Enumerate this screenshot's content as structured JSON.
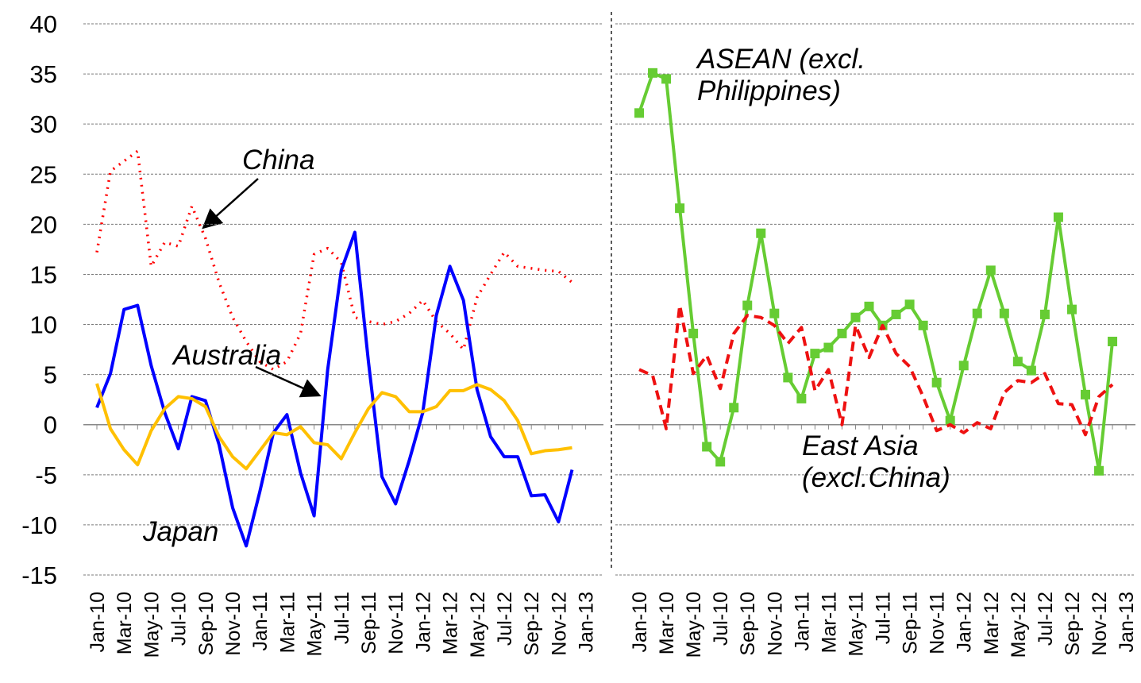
{
  "chart_data": [
    {
      "type": "line",
      "categories": [
        "Jan-10",
        null,
        "Mar-10",
        null,
        "May-10",
        null,
        "Jul-10",
        null,
        "Sep-10",
        null,
        "Nov-10",
        null,
        "Jan-11",
        null,
        "Mar-11",
        null,
        "May-11",
        null,
        "Jul-11",
        null,
        "Sep-11",
        null,
        "Nov-11",
        null,
        "Jan-12",
        null,
        "Mar-12",
        null,
        "May-12",
        null,
        "Jul-12",
        null,
        "Sep-12",
        null,
        "Nov-12",
        null,
        "Jan-13"
      ],
      "ylim": [
        -15,
        40
      ],
      "yticks": [
        -15,
        -10,
        -5,
        0,
        5,
        10,
        15,
        20,
        25,
        30,
        35,
        40
      ],
      "grid": true,
      "series": [
        {
          "name": "China",
          "color": "#ff0000",
          "style": "dotted",
          "values": [
            17.2,
            25.3,
            26.3,
            27.3,
            15.8,
            18.2,
            17.8,
            21.8,
            18.6,
            14.2,
            10.7,
            8.3,
            6.3,
            5.5,
            6.3,
            9.1,
            17.0,
            17.6,
            16.2,
            10.7,
            10.3,
            10.0,
            10.3,
            11.1,
            12.4,
            10.3,
            9.1,
            7.5,
            12.7,
            15.0,
            17.2,
            15.8,
            15.6,
            15.4,
            15.3,
            14.2,
            null
          ]
        },
        {
          "name": "Japan",
          "color": "#0000ff",
          "style": "solid",
          "values": [
            1.7,
            5.1,
            11.5,
            11.9,
            5.9,
            1.2,
            -2.4,
            2.8,
            2.4,
            -2.0,
            -8.3,
            -12.1,
            -6.7,
            -0.8,
            1.0,
            -4.8,
            -9.1,
            5.5,
            15.4,
            19.2,
            6.3,
            -5.2,
            -7.9,
            -3.6,
            1.2,
            10.9,
            15.8,
            12.4,
            3.5,
            -1.2,
            -3.2,
            -3.2,
            -7.1,
            -7.0,
            -9.7,
            -4.5,
            null
          ]
        },
        {
          "name": "Australia",
          "color": "#ffc000",
          "style": "solid",
          "values": [
            4.1,
            -0.4,
            -2.5,
            -4.0,
            -0.6,
            1.6,
            2.8,
            2.6,
            1.8,
            -1.2,
            -3.2,
            -4.4,
            -2.6,
            -0.8,
            -1.0,
            -0.2,
            -1.8,
            -2.0,
            -3.4,
            -0.8,
            1.6,
            3.2,
            2.8,
            1.3,
            1.3,
            1.8,
            3.4,
            3.4,
            4.0,
            3.5,
            2.4,
            0.4,
            -2.9,
            -2.6,
            -2.5,
            -2.3,
            null
          ]
        }
      ]
    },
    {
      "type": "line",
      "categories": [
        "Jan-10",
        null,
        "Mar-10",
        null,
        "May-10",
        null,
        "Jul-10",
        null,
        "Sep-10",
        null,
        "Nov-10",
        null,
        "Jan-11",
        null,
        "Mar-11",
        null,
        "May-11",
        null,
        "Jul-11",
        null,
        "Sep-11",
        null,
        "Nov-11",
        null,
        "Jan-12",
        null,
        "Mar-12",
        null,
        "May-12",
        null,
        "Jul-12",
        null,
        "Sep-12",
        null,
        "Nov-12",
        null,
        "Jan-13"
      ],
      "ylim": [
        -15,
        40
      ],
      "yticks": [
        -15,
        -10,
        -5,
        0,
        5,
        10,
        15,
        20,
        25,
        30,
        35,
        40
      ],
      "grid": true,
      "series": [
        {
          "name": "ASEAN (excl. Philippines)",
          "color": "#66cc33",
          "style": "solid",
          "marker": "square",
          "values": [
            31.1,
            35.1,
            34.5,
            21.6,
            9.1,
            -2.2,
            -3.7,
            1.7,
            11.9,
            19.1,
            11.1,
            4.7,
            2.6,
            7.1,
            7.7,
            9.1,
            10.7,
            11.8,
            9.9,
            11.0,
            12.0,
            9.9,
            4.2,
            0.4,
            5.9,
            11.1,
            15.4,
            11.1,
            6.3,
            5.4,
            11.0,
            20.7,
            11.5,
            3.0,
            -4.6,
            8.3,
            null
          ]
        },
        {
          "name": "East Asia (excl.China)",
          "color": "#ee1111",
          "style": "dashed",
          "values": [
            5.5,
            4.9,
            -0.4,
            11.9,
            5.1,
            6.9,
            3.6,
            9.1,
            10.9,
            10.7,
            9.9,
            8.1,
            9.7,
            3.4,
            5.5,
            0.0,
            9.9,
            6.7,
            9.9,
            7.1,
            5.8,
            2.8,
            -0.6,
            0.0,
            -0.8,
            0.2,
            -0.4,
            3.2,
            4.4,
            4.2,
            5.1,
            2.1,
            2.0,
            -1.0,
            2.8,
            4.0,
            null
          ]
        }
      ]
    }
  ]
}
